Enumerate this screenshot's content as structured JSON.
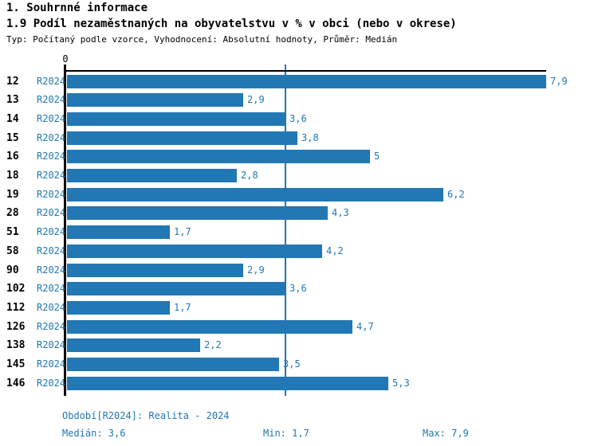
{
  "header": {
    "title": "1. Souhrnné informace",
    "subtitle": "1.9 Podíl nezaměstnaných na obyvatelstvu v % v obci (nebo v okrese)",
    "meta": "Typ: Počítaný podle vzorce, Vyhodnocení: Absolutní hodnoty, Průměr: Medián"
  },
  "chart_data": {
    "type": "bar",
    "orientation": "horizontal",
    "title": "Podíl nezaměstnaných na obyvatelstvu v % v obci (nebo v okrese)",
    "categories": [
      "12",
      "13",
      "14",
      "15",
      "16",
      "18",
      "19",
      "28",
      "51",
      "58",
      "90",
      "102",
      "112",
      "126",
      "138",
      "145",
      "146"
    ],
    "series_label": "R2024",
    "values": [
      7.9,
      2.9,
      3.6,
      3.8,
      5,
      2.8,
      6.2,
      4.3,
      1.7,
      4.2,
      2.9,
      3.6,
      1.7,
      4.7,
      2.2,
      3.5,
      5.3
    ],
    "value_labels": [
      "7,9",
      "2,9",
      "3,6",
      "3,8",
      "5",
      "2,8",
      "6,2",
      "4,3",
      "1,7",
      "4,2",
      "2,9",
      "3,6",
      "1,7",
      "4,7",
      "2,2",
      "3,5",
      "5,3"
    ],
    "xlim": [
      0,
      7.9
    ],
    "x_zero_tick_label": "0",
    "median_line_value": 3.6,
    "grid": "single vertical median line",
    "legend_position": "none"
  },
  "footer": {
    "period": "Období[R2024]: Realita - 2024",
    "median": "Medián: 3,6",
    "min": "Min: 1,7",
    "max": "Max: 7,9"
  },
  "colors": {
    "bar": "#2277B5",
    "accent_text": "#1F77B4",
    "median_line": "#1F77B4",
    "axis": "#000000"
  }
}
